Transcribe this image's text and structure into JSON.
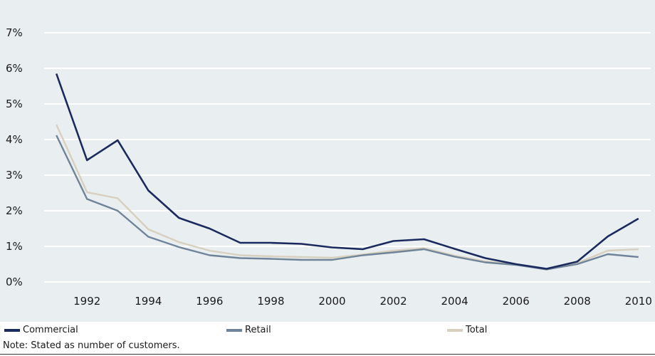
{
  "chart_data": {
    "type": "line",
    "title": "",
    "xlabel": "",
    "ylabel": "",
    "x": [
      1991,
      1992,
      1993,
      1994,
      1995,
      1996,
      1997,
      1998,
      1999,
      2000,
      2001,
      2002,
      2003,
      2004,
      2005,
      2006,
      2007,
      2008,
      2009,
      2010
    ],
    "x_ticks": [
      "1992",
      "1994",
      "1996",
      "1998",
      "2000",
      "2002",
      "2004",
      "2006",
      "2008",
      "2010"
    ],
    "y_ticks": [
      "0%",
      "1%",
      "2%",
      "3%",
      "4%",
      "5%",
      "6%",
      "7%"
    ],
    "ylim": [
      0,
      7
    ],
    "xlim": [
      1990.6,
      2010.4
    ],
    "grid": true,
    "legend_position": "bottom",
    "series": [
      {
        "name": "Commercial",
        "color": "#1b2a5e",
        "values": [
          5.85,
          3.42,
          3.98,
          2.57,
          1.8,
          1.5,
          1.1,
          1.1,
          1.07,
          0.97,
          0.92,
          1.15,
          1.2,
          0.93,
          0.67,
          0.5,
          0.37,
          0.57,
          1.28,
          1.78
        ]
      },
      {
        "name": "Retail",
        "color": "#6f8399",
        "values": [
          4.12,
          2.33,
          2.0,
          1.27,
          0.98,
          0.75,
          0.67,
          0.65,
          0.62,
          0.62,
          0.75,
          0.83,
          0.92,
          0.71,
          0.55,
          0.48,
          0.35,
          0.5,
          0.78,
          0.7
        ]
      },
      {
        "name": "Total",
        "color": "#d8d0bf",
        "values": [
          4.42,
          2.52,
          2.35,
          1.48,
          1.12,
          0.88,
          0.75,
          0.72,
          0.7,
          0.68,
          0.77,
          0.88,
          0.95,
          0.74,
          0.58,
          0.48,
          0.35,
          0.53,
          0.88,
          0.92
        ]
      }
    ]
  },
  "note": "Note: Stated as number of customers.",
  "colors": {
    "plot_background": "#e9eef1",
    "gridline": "#ffffff"
  }
}
